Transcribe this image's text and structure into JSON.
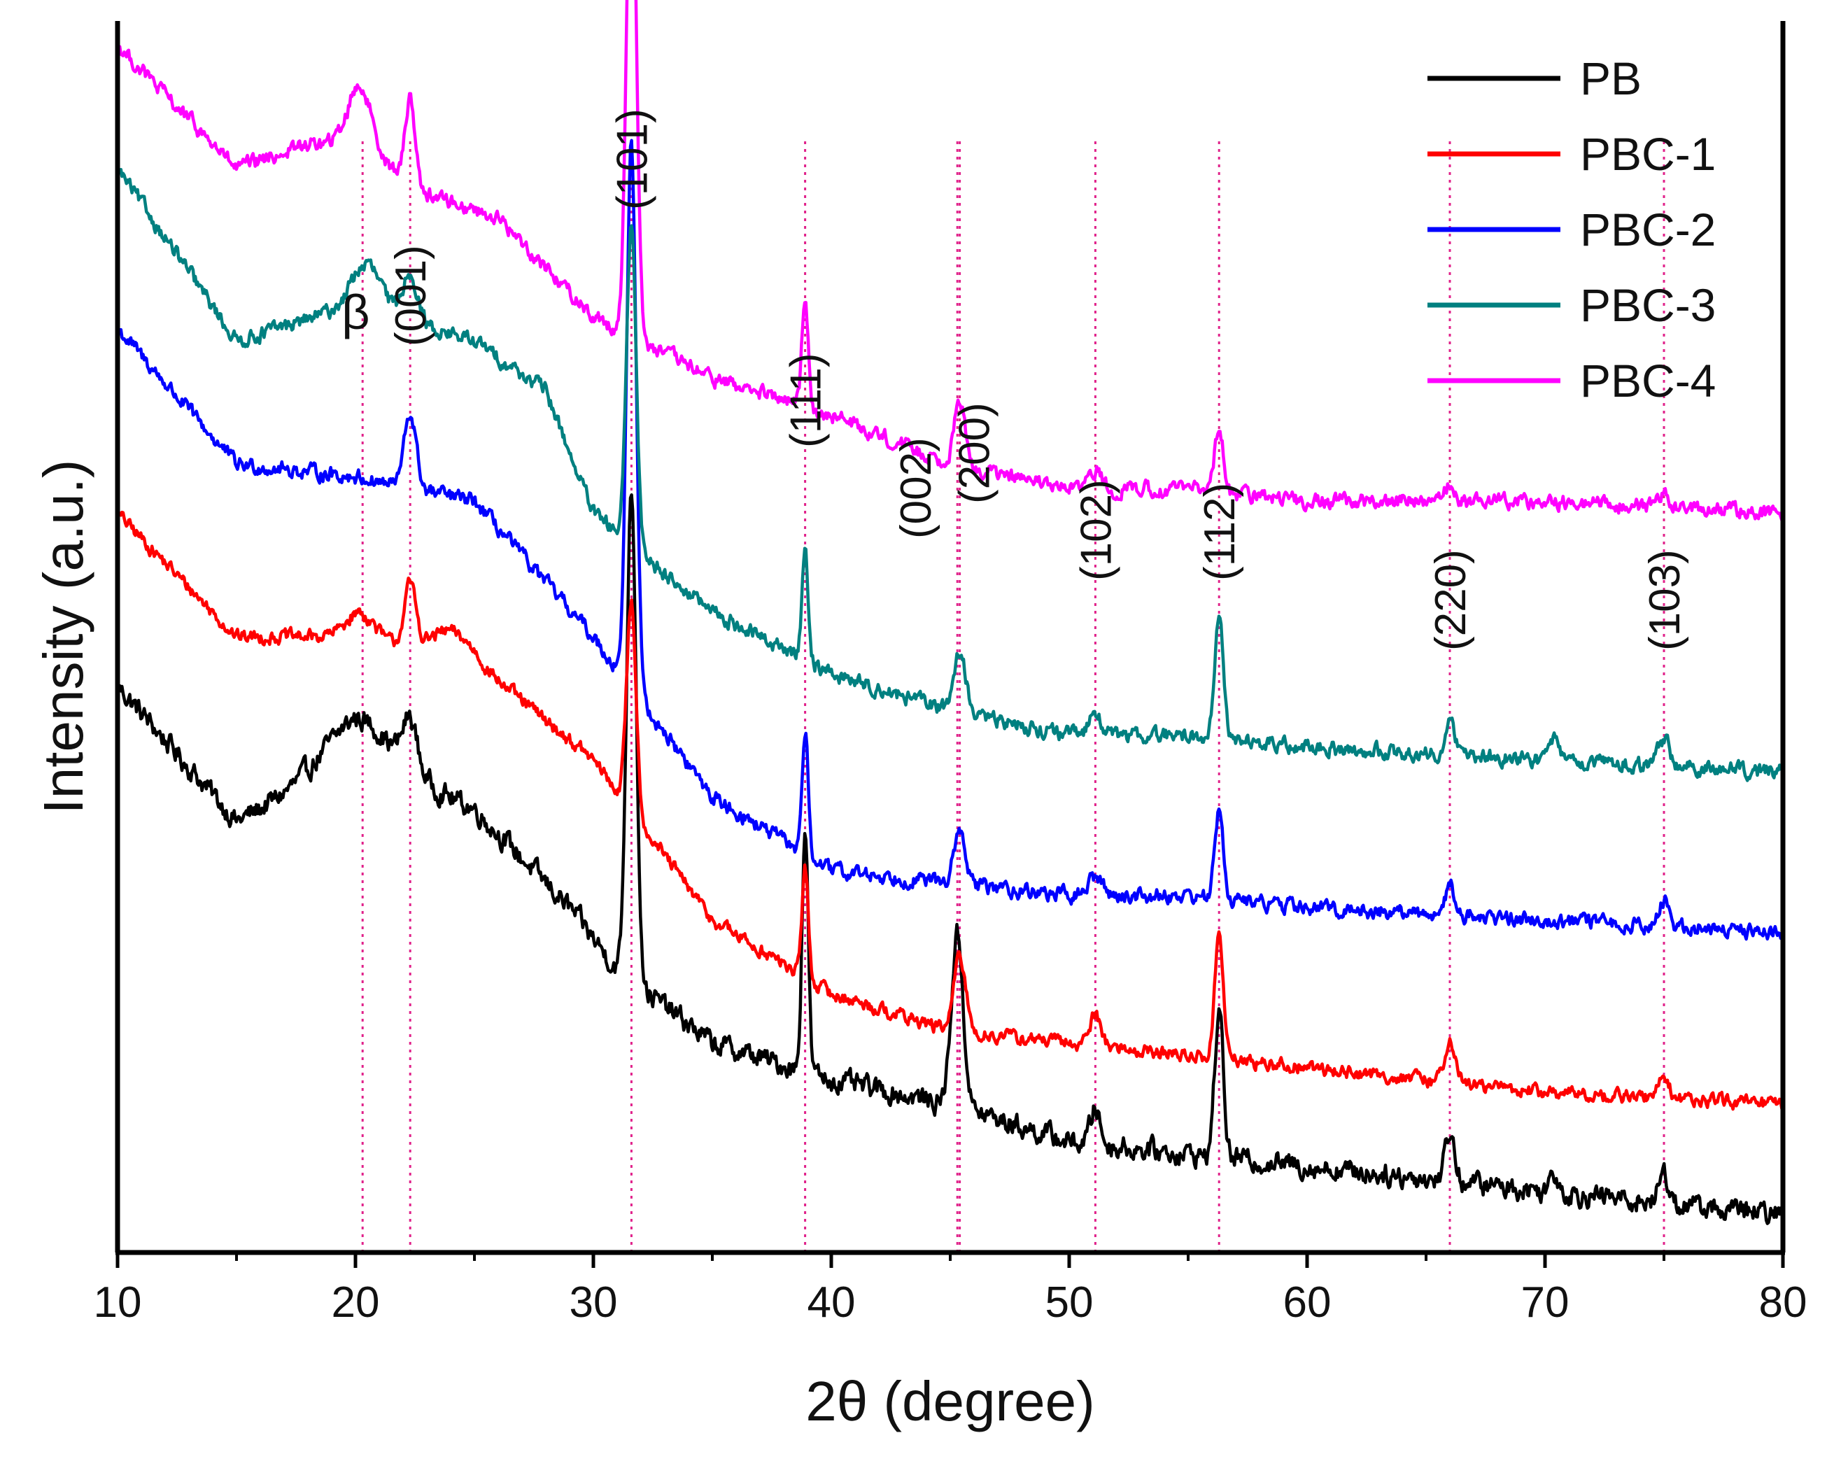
{
  "chart_data": {
    "type": "line",
    "title": "",
    "xlabel": "2θ (degree)",
    "ylabel": "Intensity (a.u.)",
    "xlim": [
      10,
      80
    ],
    "ylim": [
      0,
      100
    ],
    "xticks": [
      "10",
      "20",
      "30",
      "40",
      "50",
      "60",
      "70",
      "80"
    ],
    "yticks": [],
    "grid": false,
    "legend_position": "top-right",
    "phase_marker": {
      "label": "β",
      "x": 20.3
    },
    "reference_lines": [
      {
        "label": "(001)",
        "x": 22.3
      },
      {
        "label": "(101)",
        "x": 31.6
      },
      {
        "label": "(111)",
        "x": 38.9
      },
      {
        "label": "(002)",
        "x": 45.3
      },
      {
        "label": "(200)",
        "x": 45.4
      },
      {
        "label": "(102)",
        "x": 51.1
      },
      {
        "label": "(112)",
        "x": 56.3
      },
      {
        "label": "(220)",
        "x": 66.0
      },
      {
        "label": "(103)",
        "x": 75.0
      }
    ],
    "series": [
      {
        "name": "PB",
        "color": "#000000",
        "baseline": [
          [
            10,
            46
          ],
          [
            15,
            35
          ],
          [
            20,
            40
          ],
          [
            25,
            36
          ],
          [
            29,
            28
          ],
          [
            31,
            23
          ],
          [
            35,
            17
          ],
          [
            40,
            14
          ],
          [
            45,
            12
          ],
          [
            50,
            9
          ],
          [
            55,
            8
          ],
          [
            60,
            7
          ],
          [
            70,
            5
          ],
          [
            80,
            3
          ]
        ],
        "peaks": [
          [
            20.2,
            3.5,
            1.5
          ],
          [
            22.3,
            4,
            0.3
          ],
          [
            31.6,
            40,
            0.2
          ],
          [
            38.9,
            20,
            0.13
          ],
          [
            45.3,
            14,
            0.25
          ],
          [
            51.1,
            3,
            0.2
          ],
          [
            56.3,
            12,
            0.18
          ],
          [
            66.0,
            4,
            0.2
          ],
          [
            70.4,
            1.5,
            0.2
          ],
          [
            75.0,
            2.5,
            0.2
          ]
        ],
        "noise": 1.6
      },
      {
        "name": "PBC-1",
        "color": "#ff0000",
        "baseline": [
          [
            10,
            60
          ],
          [
            15,
            50
          ],
          [
            20,
            50
          ],
          [
            25,
            48
          ],
          [
            30,
            40
          ],
          [
            35,
            27
          ],
          [
            40,
            21
          ],
          [
            45,
            18
          ],
          [
            50,
            17
          ],
          [
            55,
            16
          ],
          [
            60,
            15
          ],
          [
            70,
            13
          ],
          [
            80,
            12
          ]
        ],
        "peaks": [
          [
            20.2,
            2,
            0.6
          ],
          [
            22.3,
            5,
            0.25
          ],
          [
            24,
            2,
            0.8
          ],
          [
            31.6,
            17,
            0.2
          ],
          [
            38.9,
            9,
            0.13
          ],
          [
            45.4,
            6,
            0.25
          ],
          [
            51.1,
            2.5,
            0.25
          ],
          [
            56.3,
            10,
            0.18
          ],
          [
            66.0,
            3.5,
            0.22
          ],
          [
            75.0,
            2,
            0.2
          ]
        ],
        "noise": 1.0
      },
      {
        "name": "PBC-2",
        "color": "#0000ff",
        "baseline": [
          [
            10,
            75
          ],
          [
            15,
            64
          ],
          [
            20,
            63
          ],
          [
            25,
            61
          ],
          [
            30,
            50
          ],
          [
            35,
            37
          ],
          [
            40,
            31
          ],
          [
            45,
            30
          ],
          [
            50,
            29
          ],
          [
            55,
            29
          ],
          [
            60,
            28
          ],
          [
            70,
            27
          ],
          [
            80,
            26
          ]
        ],
        "peaks": [
          [
            22.3,
            6,
            0.25
          ],
          [
            31.6,
            44,
            0.2
          ],
          [
            38.9,
            10,
            0.13
          ],
          [
            45.4,
            4,
            0.25
          ],
          [
            51.1,
            1.5,
            0.3
          ],
          [
            56.3,
            7,
            0.18
          ],
          [
            66.0,
            2.5,
            0.2
          ],
          [
            75.0,
            2,
            0.2
          ]
        ],
        "noise": 1.1
      },
      {
        "name": "PBC-3",
        "color": "#008080",
        "baseline": [
          [
            10,
            88
          ],
          [
            15,
            74
          ],
          [
            20,
            77
          ],
          [
            25,
            74
          ],
          [
            28,
            70
          ],
          [
            30,
            60
          ],
          [
            35,
            52
          ],
          [
            40,
            47
          ],
          [
            45,
            44
          ],
          [
            50,
            42
          ],
          [
            55,
            42
          ],
          [
            60,
            41
          ],
          [
            70,
            40
          ],
          [
            80,
            39
          ]
        ],
        "peaks": [
          [
            20.5,
            3.5,
            0.6
          ],
          [
            22.3,
            4,
            0.3
          ],
          [
            31.6,
            26,
            0.2
          ],
          [
            38.9,
            9,
            0.13
          ],
          [
            45.4,
            5,
            0.25
          ],
          [
            51.1,
            2,
            0.25
          ],
          [
            56.3,
            10,
            0.18
          ],
          [
            66.0,
            2.5,
            0.22
          ],
          [
            70.4,
            1.5,
            0.2
          ],
          [
            75.0,
            2,
            0.25
          ]
        ],
        "noise": 1.1
      },
      {
        "name": "PBC-4",
        "color": "#ff00ff",
        "baseline": [
          [
            10,
            98
          ],
          [
            15,
            88
          ],
          [
            18,
            90
          ],
          [
            20,
            90
          ],
          [
            23,
            86
          ],
          [
            26,
            84
          ],
          [
            30,
            76
          ],
          [
            35,
            71
          ],
          [
            40,
            68
          ],
          [
            45,
            64
          ],
          [
            50,
            62
          ],
          [
            55,
            62
          ],
          [
            60,
            61
          ],
          [
            70,
            61
          ],
          [
            80,
            60
          ]
        ],
        "peaks": [
          [
            20.2,
            5,
            0.5
          ],
          [
            22.3,
            7,
            0.2
          ],
          [
            31.6,
            43,
            0.2
          ],
          [
            38.9,
            9,
            0.13
          ],
          [
            45.4,
            5,
            0.25
          ],
          [
            51.1,
            1.5,
            0.25
          ],
          [
            56.3,
            5,
            0.2
          ],
          [
            66.0,
            1.5,
            0.2
          ],
          [
            75.0,
            1,
            0.25
          ]
        ],
        "noise": 1.1
      }
    ]
  }
}
